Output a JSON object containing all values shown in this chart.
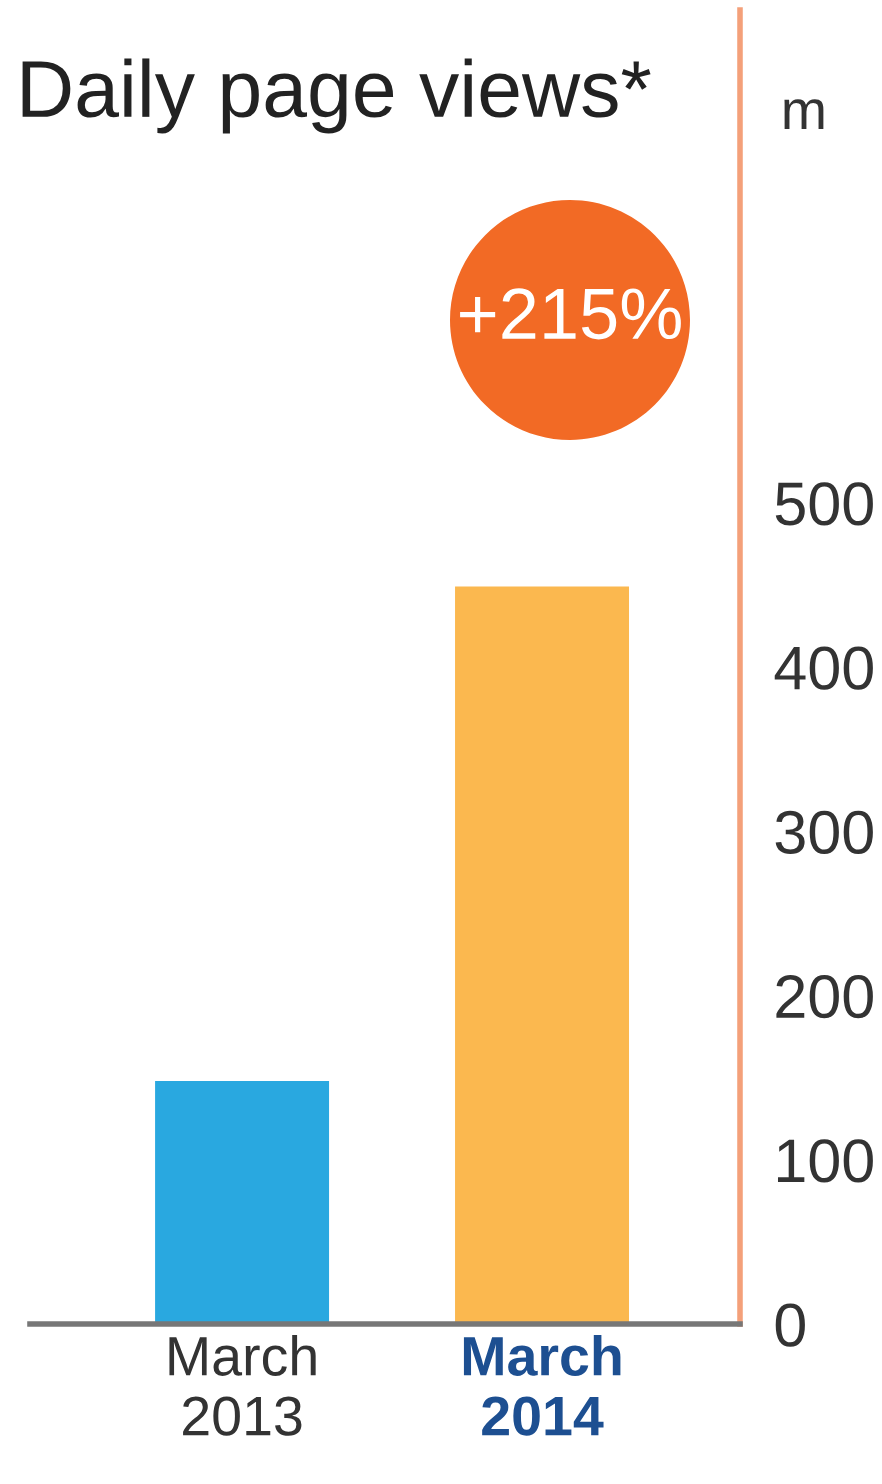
{
  "chart_data": {
    "type": "bar",
    "title": "Daily page views*",
    "ylabel": "m",
    "categories": [
      "March\n2013",
      "March\n2014"
    ],
    "values": [
      148,
      449
    ],
    "colors": [
      "#29a8e0",
      "#fbb84f"
    ],
    "ylim": [
      0,
      800
    ],
    "yticks": [
      0,
      100,
      200,
      300,
      400,
      500
    ],
    "grid": false,
    "legend": false,
    "annotations": [
      "+215%"
    ]
  }
}
